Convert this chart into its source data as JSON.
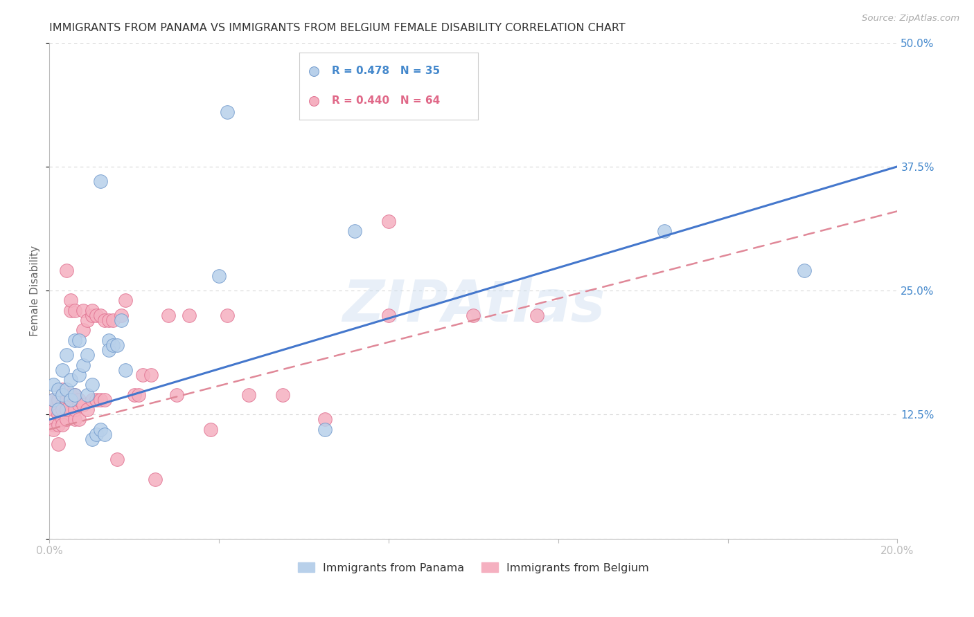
{
  "title": "IMMIGRANTS FROM PANAMA VS IMMIGRANTS FROM BELGIUM FEMALE DISABILITY CORRELATION CHART",
  "source": "Source: ZipAtlas.com",
  "ylabel": "Female Disability",
  "series1_label": "Immigrants from Panama",
  "series2_label": "Immigrants from Belgium",
  "series1_R": "0.478",
  "series1_N": "35",
  "series2_R": "0.440",
  "series2_N": "64",
  "series1_color": "#b8d0ea",
  "series2_color": "#f5b0c0",
  "series1_edge_color": "#7099cc",
  "series2_edge_color": "#e07090",
  "line1_color": "#4477cc",
  "line2_color": "#e08898",
  "watermark": "ZIPAtlas",
  "background_color": "#ffffff",
  "grid_color": "#d8d8d8",
  "axis_color": "#bbbbbb",
  "title_color": "#333333",
  "ylabel_color": "#666666",
  "tick_color": "#4488cc",
  "xmin": 0.0,
  "xmax": 0.2,
  "ymin": 0.0,
  "ymax": 0.5,
  "yticks": [
    0.0,
    0.125,
    0.25,
    0.375,
    0.5
  ],
  "ytick_labels": [
    "",
    "12.5%",
    "25.0%",
    "37.5%",
    "50.0%"
  ],
  "xticks": [
    0.0,
    0.04,
    0.08,
    0.12,
    0.16,
    0.2
  ],
  "xtick_labels": [
    "0.0%",
    "",
    "",
    "",
    "",
    "20.0%"
  ],
  "series1_x": [
    0.001,
    0.001,
    0.002,
    0.002,
    0.003,
    0.003,
    0.004,
    0.004,
    0.005,
    0.005,
    0.006,
    0.006,
    0.007,
    0.007,
    0.008,
    0.009,
    0.009,
    0.01,
    0.01,
    0.011,
    0.012,
    0.013,
    0.014,
    0.014,
    0.015,
    0.016,
    0.017,
    0.018,
    0.04,
    0.065,
    0.072,
    0.145,
    0.178,
    0.012,
    0.042
  ],
  "series1_y": [
    0.155,
    0.14,
    0.15,
    0.13,
    0.145,
    0.17,
    0.15,
    0.185,
    0.14,
    0.16,
    0.145,
    0.2,
    0.165,
    0.2,
    0.175,
    0.145,
    0.185,
    0.155,
    0.1,
    0.105,
    0.11,
    0.105,
    0.2,
    0.19,
    0.195,
    0.195,
    0.22,
    0.17,
    0.265,
    0.11,
    0.31,
    0.31,
    0.27,
    0.36,
    0.43
  ],
  "series2_x": [
    0.001,
    0.001,
    0.001,
    0.001,
    0.002,
    0.002,
    0.002,
    0.002,
    0.003,
    0.003,
    0.003,
    0.003,
    0.003,
    0.004,
    0.004,
    0.004,
    0.004,
    0.005,
    0.005,
    0.005,
    0.005,
    0.006,
    0.006,
    0.006,
    0.006,
    0.007,
    0.007,
    0.007,
    0.008,
    0.008,
    0.008,
    0.009,
    0.009,
    0.01,
    0.01,
    0.01,
    0.011,
    0.011,
    0.012,
    0.012,
    0.013,
    0.013,
    0.014,
    0.015,
    0.016,
    0.017,
    0.018,
    0.02,
    0.021,
    0.022,
    0.024,
    0.025,
    0.028,
    0.03,
    0.033,
    0.038,
    0.042,
    0.047,
    0.055,
    0.065,
    0.08,
    0.1,
    0.115,
    0.08
  ],
  "series2_y": [
    0.13,
    0.14,
    0.115,
    0.11,
    0.125,
    0.14,
    0.115,
    0.095,
    0.135,
    0.12,
    0.15,
    0.115,
    0.13,
    0.14,
    0.12,
    0.13,
    0.27,
    0.14,
    0.145,
    0.23,
    0.24,
    0.12,
    0.13,
    0.23,
    0.145,
    0.135,
    0.12,
    0.14,
    0.21,
    0.23,
    0.135,
    0.13,
    0.22,
    0.14,
    0.225,
    0.23,
    0.14,
    0.225,
    0.14,
    0.225,
    0.14,
    0.22,
    0.22,
    0.22,
    0.08,
    0.225,
    0.24,
    0.145,
    0.145,
    0.165,
    0.165,
    0.06,
    0.225,
    0.145,
    0.225,
    0.11,
    0.225,
    0.145,
    0.145,
    0.12,
    0.225,
    0.225,
    0.225,
    0.32
  ],
  "line1_x0": 0.0,
  "line1_y0": 0.12,
  "line1_x1": 0.2,
  "line1_y1": 0.375,
  "line2_x0": 0.0,
  "line2_y0": 0.11,
  "line2_x1": 0.2,
  "line2_y1": 0.33
}
